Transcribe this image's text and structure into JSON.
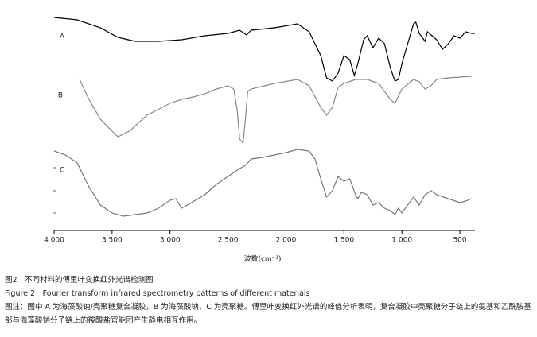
{
  "chart_data": {
    "type": "line",
    "xlabel": "波数(cm⁻¹)",
    "xlim": [
      4000,
      370
    ],
    "xticks": [
      {
        "value": 4000,
        "label": "4 000"
      },
      {
        "value": 3500,
        "label": "3 500"
      },
      {
        "value": 3000,
        "label": "3 000"
      },
      {
        "value": 2500,
        "label": "2 500"
      },
      {
        "value": 2000,
        "label": "2 000"
      },
      {
        "value": 1500,
        "label": "1 500"
      },
      {
        "value": 1000,
        "label": "1 000"
      },
      500
    ],
    "ylim": [
      0,
      280
    ],
    "series": [
      {
        "name": "A",
        "color": "#000000",
        "x": [
          4000,
          3800,
          3600,
          3450,
          3300,
          3100,
          2900,
          2700,
          2500,
          2400,
          2340,
          2300,
          2100,
          1900,
          1800,
          1700,
          1650,
          1600,
          1550,
          1500,
          1450,
          1410,
          1380,
          1330,
          1300,
          1250,
          1200,
          1150,
          1100,
          1060,
          1030,
          1000,
          950,
          900,
          880,
          850,
          800,
          780,
          700,
          650,
          600,
          550,
          500,
          450,
          400,
          370
        ],
        "values": [
          268,
          265,
          255,
          243,
          238,
          238,
          240,
          245,
          248,
          252,
          246,
          252,
          255,
          260,
          250,
          220,
          192,
          188,
          198,
          220,
          215,
          195,
          210,
          240,
          245,
          230,
          242,
          235,
          205,
          188,
          190,
          210,
          235,
          260,
          262,
          248,
          238,
          250,
          240,
          228,
          235,
          245,
          242,
          250,
          248,
          248
        ]
      },
      {
        "name": "B",
        "color": "#888888",
        "x": [
          3780,
          3700,
          3600,
          3500,
          3450,
          3350,
          3200,
          3000,
          2900,
          2800,
          2700,
          2600,
          2500,
          2450,
          2420,
          2400,
          2370,
          2350,
          2330,
          2300,
          2100,
          1900,
          1800,
          1700,
          1650,
          1600,
          1550,
          1500,
          1400,
          1300,
          1200,
          1100,
          1060,
          1000,
          900,
          850,
          800,
          750,
          700,
          600,
          500,
          400
        ],
        "values": [
          190,
          165,
          140,
          125,
          118,
          125,
          145,
          160,
          165,
          168,
          172,
          178,
          182,
          178,
          150,
          115,
          110,
          140,
          175,
          178,
          185,
          190,
          182,
          155,
          145,
          155,
          180,
          185,
          190,
          190,
          185,
          165,
          160,
          178,
          190,
          187,
          178,
          182,
          190,
          192,
          193,
          194
        ]
      },
      {
        "name": "C",
        "color": "#777777",
        "x": [
          4000,
          3900,
          3800,
          3700,
          3600,
          3500,
          3400,
          3200,
          3100,
          3000,
          2950,
          2900,
          2850,
          2700,
          2600,
          2500,
          2400,
          2350,
          2300,
          2200,
          2000,
          1900,
          1800,
          1750,
          1700,
          1650,
          1600,
          1550,
          1500,
          1450,
          1400,
          1380,
          1350,
          1300,
          1250,
          1200,
          1150,
          1100,
          1060,
          1030,
          1000,
          950,
          900,
          850,
          800,
          750,
          700,
          600,
          500,
          450,
          400
        ],
        "values": [
          100,
          95,
          85,
          55,
          32,
          22,
          18,
          22,
          28,
          38,
          40,
          28,
          32,
          45,
          58,
          68,
          78,
          82,
          90,
          92,
          98,
          102,
          100,
          90,
          65,
          42,
          50,
          68,
          62,
          65,
          45,
          40,
          48,
          45,
          32,
          35,
          28,
          25,
          20,
          28,
          22,
          32,
          42,
          32,
          45,
          50,
          45,
          40,
          35,
          37,
          40
        ]
      }
    ]
  },
  "caption": {
    "title_zh": "图2　不同材料的傅里叶变换红外光谱检测图",
    "title_en": "Figure 2　Fourier transform infrared spectrometry patterns of different materials",
    "note": "图注：图中 A 为海藻酸钠/壳聚糖复合凝胶，B 为海藻酸钠，C 为壳聚糖。傅里叶变换红外光谱的峰值分析表明，复合凝胶中壳聚糖分子链上的氨基和乙酰胺基部与海藻酸钠分子链上的羧酸盐官能团产生静电相互作用。"
  }
}
